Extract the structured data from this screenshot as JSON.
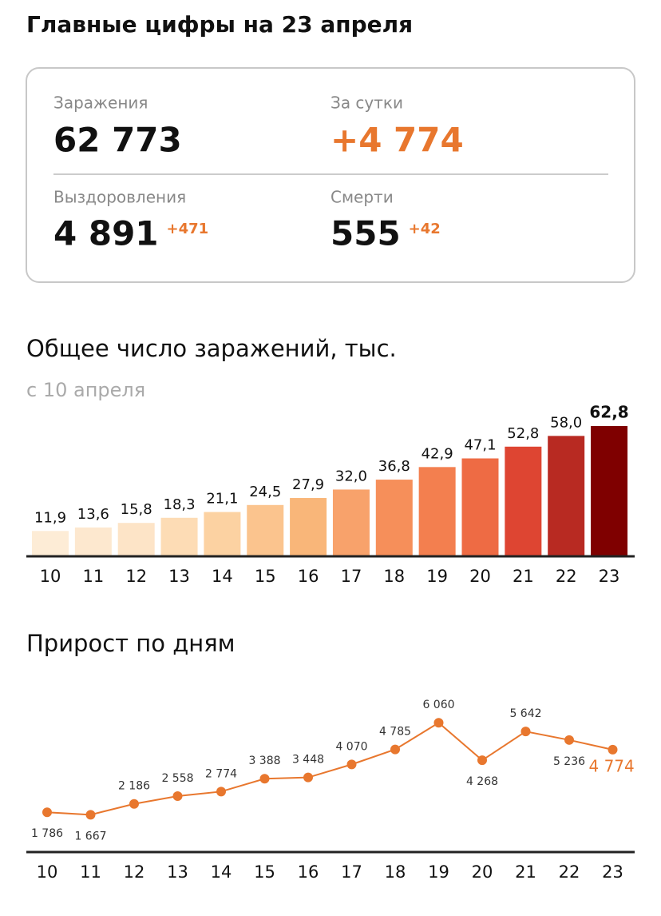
{
  "title": "Главные цифры на 23 апреля",
  "stats": [
    {
      "label": "Заражения",
      "value": "62 773"
    },
    {
      "label": "За сутки",
      "value": "+4 774"
    },
    {
      "label": "Выздоровления",
      "value": "4 891",
      "delta": "+471"
    },
    {
      "label": "Смерти",
      "value": "555",
      "delta": "+42"
    }
  ],
  "chart_data": [
    {
      "type": "bar",
      "title": "Общее число заражений, тыс.",
      "subtitle": "с 10 апреля",
      "categories": [
        "10",
        "11",
        "12",
        "13",
        "14",
        "15",
        "16",
        "17",
        "18",
        "19",
        "20",
        "21",
        "22",
        "23"
      ],
      "values": [
        11.9,
        13.6,
        15.8,
        18.3,
        21.1,
        24.5,
        27.9,
        32.0,
        36.8,
        42.9,
        47.1,
        52.8,
        58.0,
        62.8
      ],
      "value_labels": [
        "11,9",
        "13,6",
        "15,8",
        "18,3",
        "21,1",
        "24,5",
        "27,9",
        "32,0",
        "36,8",
        "42,9",
        "47,1",
        "52,8",
        "58,0",
        "62,8"
      ],
      "colors": [
        "#fdecd6",
        "#fde8cf",
        "#fde4c7",
        "#fddcb5",
        "#fcd2a2",
        "#fbc48e",
        "#f9b679",
        "#f8a26b",
        "#f68f5a",
        "#f37f4f",
        "#ee6b44",
        "#de4532",
        "#b82a22",
        "#7f0000"
      ]
    },
    {
      "type": "line",
      "title": "Прирост по дням",
      "color": "#e8772e",
      "categories": [
        "10",
        "11",
        "12",
        "13",
        "14",
        "15",
        "16",
        "17",
        "18",
        "19",
        "20",
        "21",
        "22",
        "23"
      ],
      "values": [
        1786,
        1667,
        2186,
        2558,
        2774,
        3388,
        3448,
        4070,
        4785,
        6060,
        4268,
        5642,
        5236,
        4774
      ],
      "value_labels": [
        "1 786",
        "1 667",
        "2 186",
        "2 558",
        "2 774",
        "3 388",
        "3 448",
        "4 070",
        "4 785",
        "6 060",
        "4 268",
        "5 642",
        "5 236",
        "4 774"
      ]
    }
  ]
}
